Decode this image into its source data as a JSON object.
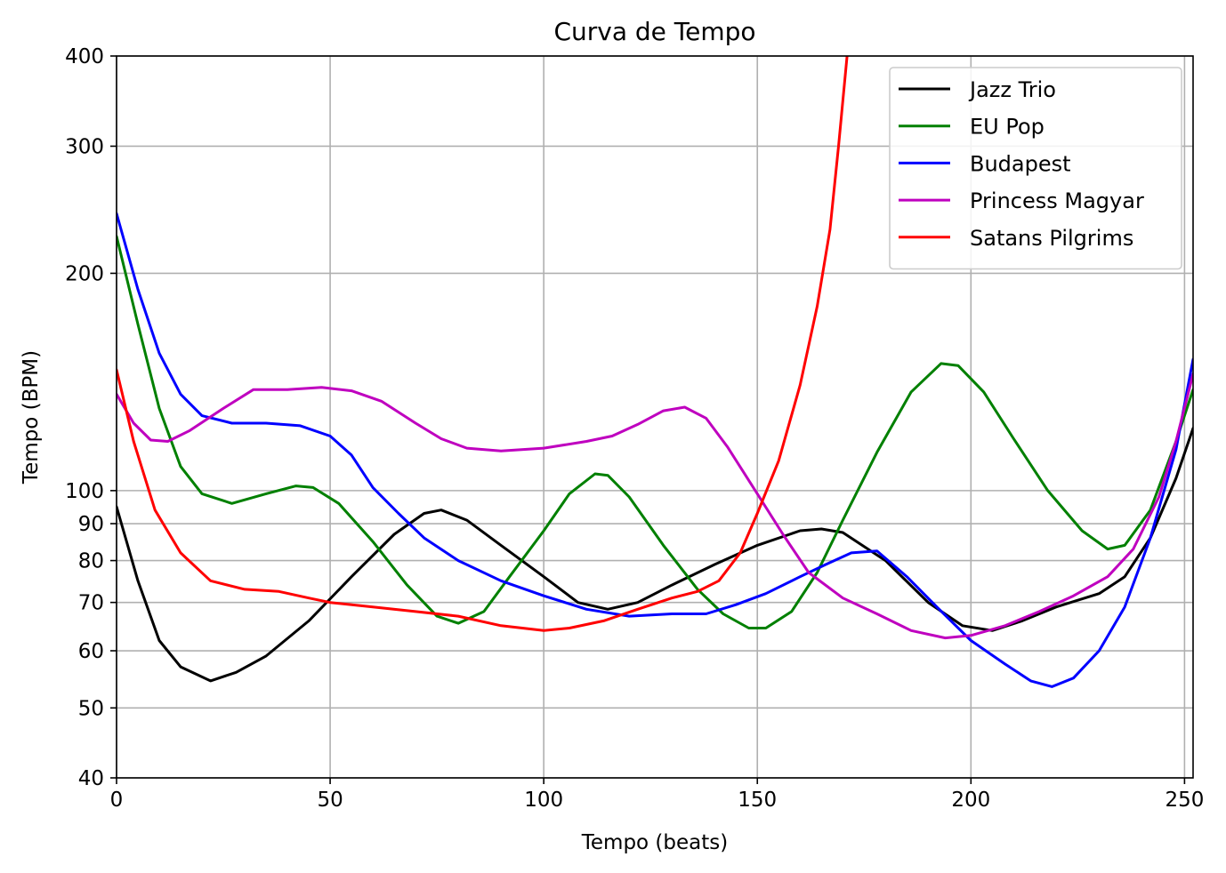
{
  "chart_data": {
    "type": "line",
    "title": "Curva de Tempo",
    "xlabel": "Tempo (beats)",
    "ylabel": "Tempo (BPM)",
    "xlim": [
      0,
      252
    ],
    "ylim": [
      40,
      400
    ],
    "yscale": "log",
    "grid": true,
    "legend_position": "top-right",
    "x_ticks": [
      0,
      50,
      100,
      150,
      200,
      250
    ],
    "y_ticks": [
      40,
      50,
      60,
      70,
      80,
      90,
      100,
      200,
      300,
      400
    ],
    "series": [
      {
        "name": "Jazz Trio",
        "color": "#000000",
        "points": [
          [
            0,
            95
          ],
          [
            5,
            75
          ],
          [
            10,
            62
          ],
          [
            15,
            57
          ],
          [
            22,
            54.5
          ],
          [
            28,
            56
          ],
          [
            35,
            59
          ],
          [
            45,
            66
          ],
          [
            55,
            76
          ],
          [
            65,
            87
          ],
          [
            72,
            93
          ],
          [
            76,
            94
          ],
          [
            82,
            91
          ],
          [
            90,
            84
          ],
          [
            100,
            76
          ],
          [
            108,
            70
          ],
          [
            115,
            68.5
          ],
          [
            122,
            70
          ],
          [
            130,
            74
          ],
          [
            140,
            79
          ],
          [
            150,
            84
          ],
          [
            160,
            88
          ],
          [
            165,
            88.5
          ],
          [
            170,
            87.5
          ],
          [
            180,
            80
          ],
          [
            190,
            70
          ],
          [
            198,
            65
          ],
          [
            205,
            64
          ],
          [
            212,
            66
          ],
          [
            220,
            69
          ],
          [
            230,
            72
          ],
          [
            236,
            76
          ],
          [
            242,
            86
          ],
          [
            248,
            104
          ],
          [
            252,
            122
          ]
        ]
      },
      {
        "name": "EU Pop",
        "color": "#008000",
        "points": [
          [
            0,
            225
          ],
          [
            5,
            170
          ],
          [
            10,
            130
          ],
          [
            15,
            108
          ],
          [
            20,
            99
          ],
          [
            27,
            96
          ],
          [
            35,
            99
          ],
          [
            42,
            101.5
          ],
          [
            46,
            101
          ],
          [
            52,
            96
          ],
          [
            60,
            85
          ],
          [
            68,
            74
          ],
          [
            75,
            67
          ],
          [
            80,
            65.5
          ],
          [
            86,
            68
          ],
          [
            92,
            76
          ],
          [
            100,
            88
          ],
          [
            106,
            99
          ],
          [
            112,
            105.5
          ],
          [
            115,
            105
          ],
          [
            120,
            98
          ],
          [
            128,
            84
          ],
          [
            136,
            73
          ],
          [
            142,
            67.5
          ],
          [
            148,
            64.5
          ],
          [
            152,
            64.5
          ],
          [
            158,
            68
          ],
          [
            164,
            77
          ],
          [
            170,
            91
          ],
          [
            178,
            113
          ],
          [
            186,
            137
          ],
          [
            193,
            150
          ],
          [
            197,
            149
          ],
          [
            203,
            137
          ],
          [
            210,
            118
          ],
          [
            218,
            100
          ],
          [
            226,
            88
          ],
          [
            232,
            83
          ],
          [
            236,
            84
          ],
          [
            242,
            94
          ],
          [
            248,
            117
          ],
          [
            252,
            138
          ]
        ]
      },
      {
        "name": "Budapest",
        "color": "#0000ff",
        "points": [
          [
            0,
            242
          ],
          [
            5,
            190
          ],
          [
            10,
            155
          ],
          [
            15,
            136
          ],
          [
            20,
            127
          ],
          [
            27,
            124
          ],
          [
            35,
            124
          ],
          [
            43,
            123
          ],
          [
            50,
            119
          ],
          [
            55,
            112
          ],
          [
            60,
            101
          ],
          [
            66,
            93
          ],
          [
            72,
            86
          ],
          [
            80,
            80
          ],
          [
            90,
            75
          ],
          [
            100,
            71.5
          ],
          [
            110,
            68.5
          ],
          [
            120,
            67
          ],
          [
            130,
            67.5
          ],
          [
            138,
            67.5
          ],
          [
            145,
            69.5
          ],
          [
            152,
            72
          ],
          [
            160,
            76
          ],
          [
            166,
            79
          ],
          [
            172,
            82
          ],
          [
            178,
            82.5
          ],
          [
            185,
            76
          ],
          [
            192,
            69
          ],
          [
            200,
            62
          ],
          [
            208,
            57.5
          ],
          [
            214,
            54.5
          ],
          [
            219,
            53.5
          ],
          [
            224,
            55
          ],
          [
            230,
            60
          ],
          [
            236,
            69
          ],
          [
            242,
            86
          ],
          [
            248,
            114
          ],
          [
            252,
            152
          ]
        ]
      },
      {
        "name": "Princess Magyar",
        "color": "#bf00bf",
        "points": [
          [
            0,
            136
          ],
          [
            4,
            124
          ],
          [
            8,
            117.5
          ],
          [
            12,
            117
          ],
          [
            17,
            121
          ],
          [
            25,
            130
          ],
          [
            32,
            138
          ],
          [
            40,
            138
          ],
          [
            48,
            139
          ],
          [
            55,
            137.5
          ],
          [
            62,
            133
          ],
          [
            70,
            124
          ],
          [
            76,
            118
          ],
          [
            82,
            114.5
          ],
          [
            90,
            113.5
          ],
          [
            100,
            114.5
          ],
          [
            110,
            117
          ],
          [
            116,
            119
          ],
          [
            122,
            123.5
          ],
          [
            128,
            129
          ],
          [
            133,
            130.5
          ],
          [
            138,
            126
          ],
          [
            143,
            115
          ],
          [
            150,
            99
          ],
          [
            156,
            87
          ],
          [
            162,
            77
          ],
          [
            170,
            71
          ],
          [
            178,
            67.5
          ],
          [
            186,
            64
          ],
          [
            194,
            62.5
          ],
          [
            200,
            63
          ],
          [
            208,
            65
          ],
          [
            216,
            68
          ],
          [
            224,
            71.5
          ],
          [
            232,
            76
          ],
          [
            238,
            83
          ],
          [
            244,
            98
          ],
          [
            248,
            117
          ],
          [
            252,
            145
          ]
        ]
      },
      {
        "name": "Satans Pilgrims",
        "color": "#ff0000",
        "points": [
          [
            0,
            147
          ],
          [
            4,
            117
          ],
          [
            9,
            94
          ],
          [
            15,
            82
          ],
          [
            22,
            75
          ],
          [
            30,
            73
          ],
          [
            38,
            72.5
          ],
          [
            45,
            71
          ],
          [
            50,
            70
          ],
          [
            60,
            69
          ],
          [
            70,
            68
          ],
          [
            80,
            67
          ],
          [
            90,
            65
          ],
          [
            100,
            64
          ],
          [
            106,
            64.5
          ],
          [
            114,
            66
          ],
          [
            122,
            68.5
          ],
          [
            130,
            71
          ],
          [
            136,
            72.5
          ],
          [
            141,
            75
          ],
          [
            146,
            82
          ],
          [
            150,
            93
          ],
          [
            155,
            110
          ],
          [
            160,
            140
          ],
          [
            164,
            180
          ],
          [
            167,
            230
          ],
          [
            169,
            300
          ],
          [
            171,
            400
          ]
        ]
      }
    ]
  }
}
